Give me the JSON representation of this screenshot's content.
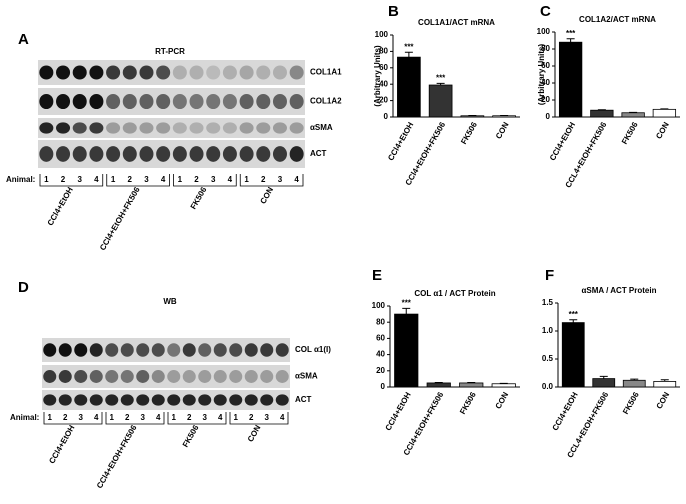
{
  "chart_data": [
    {
      "type": "bar",
      "panel": "B",
      "title": "COL1A1/ACT  mRNA",
      "ylabel": "(Arbitrary Units)",
      "categories": [
        "CCl4+EtOH",
        "CCl4+EtOH+FK506",
        "FK506",
        "CON"
      ],
      "values": [
        73,
        39,
        1.5,
        1.5
      ],
      "errors": [
        6,
        2,
        0.3,
        0.3
      ],
      "colors": [
        "#000000",
        "#333333",
        "#888888",
        "#ffffff"
      ],
      "significance": [
        "***",
        "***",
        null,
        null
      ],
      "ylim": [
        0,
        100
      ],
      "yticks": [
        0,
        20,
        40,
        60,
        80,
        100
      ]
    },
    {
      "type": "bar",
      "panel": "C",
      "title": "COL1A2/ACT  mRNA",
      "ylabel": "(Arbitrary Units)",
      "categories": [
        "CCl4+EtOH",
        "CCL4+EtOH+FK506",
        "FK506",
        "CON"
      ],
      "values": [
        88,
        8,
        5,
        9
      ],
      "errors": [
        4,
        0.5,
        0.5,
        0.5
      ],
      "colors": [
        "#000000",
        "#333333",
        "#888888",
        "#ffffff"
      ],
      "significance": [
        "***",
        null,
        null,
        null
      ],
      "ylim": [
        0,
        100
      ],
      "yticks": [
        0,
        20,
        40,
        60,
        80,
        100
      ]
    },
    {
      "type": "bar",
      "panel": "E",
      "title": "COL  α1 / ACT  Protein",
      "categories": [
        "CCl4+EtOH",
        "CCl4+EtOH+FK506",
        "FK506",
        "CON"
      ],
      "values": [
        90,
        5,
        5,
        4
      ],
      "errors": [
        7,
        0.5,
        0.5,
        0.5
      ],
      "colors": [
        "#000000",
        "#333333",
        "#888888",
        "#ffffff"
      ],
      "significance": [
        "***",
        null,
        null,
        null
      ],
      "ylim": [
        0,
        100
      ],
      "yticks": [
        0,
        20,
        40,
        60,
        80,
        100
      ]
    },
    {
      "type": "bar",
      "panel": "F",
      "title": "αSMA / ACT  Protein",
      "categories": [
        "CCl4+EtOH",
        "CCL4+EtOH+FK506",
        "FK506",
        "CON"
      ],
      "values": [
        1.15,
        0.15,
        0.12,
        0.1
      ],
      "errors": [
        0.05,
        0.04,
        0.02,
        0.03
      ],
      "colors": [
        "#000000",
        "#333333",
        "#888888",
        "#ffffff"
      ],
      "significance": [
        "***",
        null,
        null,
        null
      ],
      "ylim": [
        0,
        1.5
      ],
      "yticks": [
        {
          "value": 0,
          "label": "0.0"
        },
        0.5,
        {
          "value": 1,
          "label": "1.0"
        },
        1.5
      ]
    }
  ],
  "blots": [
    {
      "panel": "A",
      "title": "RT-PCR",
      "rows": [
        "COL1A1",
        "COL1A2",
        "αSMA",
        "ACT"
      ],
      "animal_label": "Animal:",
      "lanes": [
        "1",
        "2",
        "3",
        "4"
      ],
      "groups": [
        "CCl4+EtOH",
        "CCl4+EtOH+FK506",
        "FK506",
        "CON"
      ]
    },
    {
      "panel": "D",
      "title": "WB",
      "rows": [
        "COL  α1(I)",
        "αSMA",
        "ACT"
      ],
      "animal_label": "Animal:",
      "lanes": [
        "1",
        "2",
        "3",
        "4"
      ],
      "groups": [
        "CCl4+EtOH",
        "CCl4+EtOH+FK506",
        "FK506",
        "CON"
      ]
    }
  ]
}
